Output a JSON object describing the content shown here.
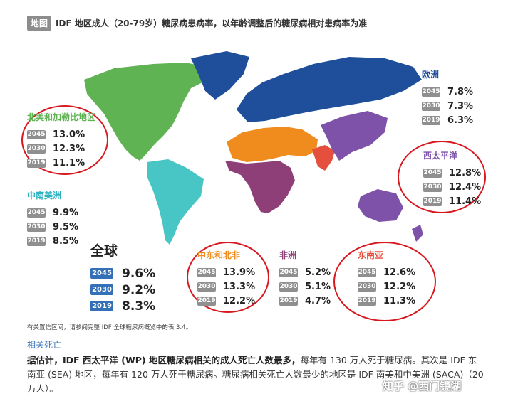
{
  "title": {
    "tag": "地图",
    "text": "IDF 地区成人（20-79岁）糖尿病患病率，以年龄调整后的糖尿病相对患病率为准"
  },
  "colors": {
    "europe": "#1f4f9b",
    "north_america": "#5fb352",
    "south_america": "#48c6c5",
    "mena": "#f08b1d",
    "africa": "#8f3f78",
    "sea": "#e4503d",
    "wp": "#7d52a8",
    "global_badge": "#3470b8",
    "year_badge": "#8f8f8f",
    "circle": "#d7191f"
  },
  "regions": {
    "europe": {
      "name": "欧洲",
      "name_color": "#1f4f9b",
      "rows": [
        {
          "year": "2045",
          "value": "7.8%"
        },
        {
          "year": "2030",
          "value": "7.3%"
        },
        {
          "year": "2019",
          "value": "6.3%"
        }
      ]
    },
    "north_america": {
      "name": "北美和加勒比地区",
      "name_color": "#5fb352",
      "rows": [
        {
          "year": "2045",
          "value": "13.0%"
        },
        {
          "year": "2030",
          "value": "12.3%"
        },
        {
          "year": "2019",
          "value": "11.1%"
        }
      ]
    },
    "south_america": {
      "name": "中南美洲",
      "name_color": "#2fb3c0",
      "rows": [
        {
          "year": "2045",
          "value": "9.9%"
        },
        {
          "year": "2030",
          "value": "9.5%"
        },
        {
          "year": "2019",
          "value": "8.5%"
        }
      ]
    },
    "wp": {
      "name": "西太平洋",
      "name_color": "#7d52a8",
      "rows": [
        {
          "year": "2045",
          "value": "12.8%"
        },
        {
          "year": "2030",
          "value": "12.4%"
        },
        {
          "year": "2019",
          "value": "11.4%"
        }
      ]
    },
    "mena": {
      "name": "中东和北非",
      "name_color": "#f08b1d",
      "rows": [
        {
          "year": "2045",
          "value": "13.9%"
        },
        {
          "year": "2030",
          "value": "13.3%"
        },
        {
          "year": "2019",
          "value": "12.2%"
        }
      ]
    },
    "africa": {
      "name": "非洲",
      "name_color": "#8f3f78",
      "rows": [
        {
          "year": "2045",
          "value": "5.2%"
        },
        {
          "year": "2030",
          "value": "5.1%"
        },
        {
          "year": "2019",
          "value": "4.7%"
        }
      ]
    },
    "sea": {
      "name": "东南亚",
      "name_color": "#e4503d",
      "rows": [
        {
          "year": "2045",
          "value": "12.6%"
        },
        {
          "year": "2030",
          "value": "12.2%"
        },
        {
          "year": "2019",
          "value": "11.3%"
        }
      ]
    }
  },
  "global": {
    "name": "全球",
    "rows": [
      {
        "year": "2045",
        "value": "9.6%"
      },
      {
        "year": "2030",
        "value": "9.2%"
      },
      {
        "year": "2019",
        "value": "8.3%"
      }
    ]
  },
  "note": "有关置信区间，请参阅完整 IDF 全球糖尿病概览中的表 3.4。",
  "section_title": "相关死亡",
  "paragraph": {
    "bold": "据估计，IDF 西太平洋 (WP) 地区糖尿病相关的成人死亡人数最多，",
    "rest": "每年有 130 万人死于糖尿病。其次是 IDF 东南亚 (SEA) 地区，每年有 120 万人死于糖尿病。糖尿病相关死亡人数最少的地区是 IDF 南美和中美洲 (SACA)（20 万人）。"
  },
  "watermark": "知乎 @西门镜湖"
}
